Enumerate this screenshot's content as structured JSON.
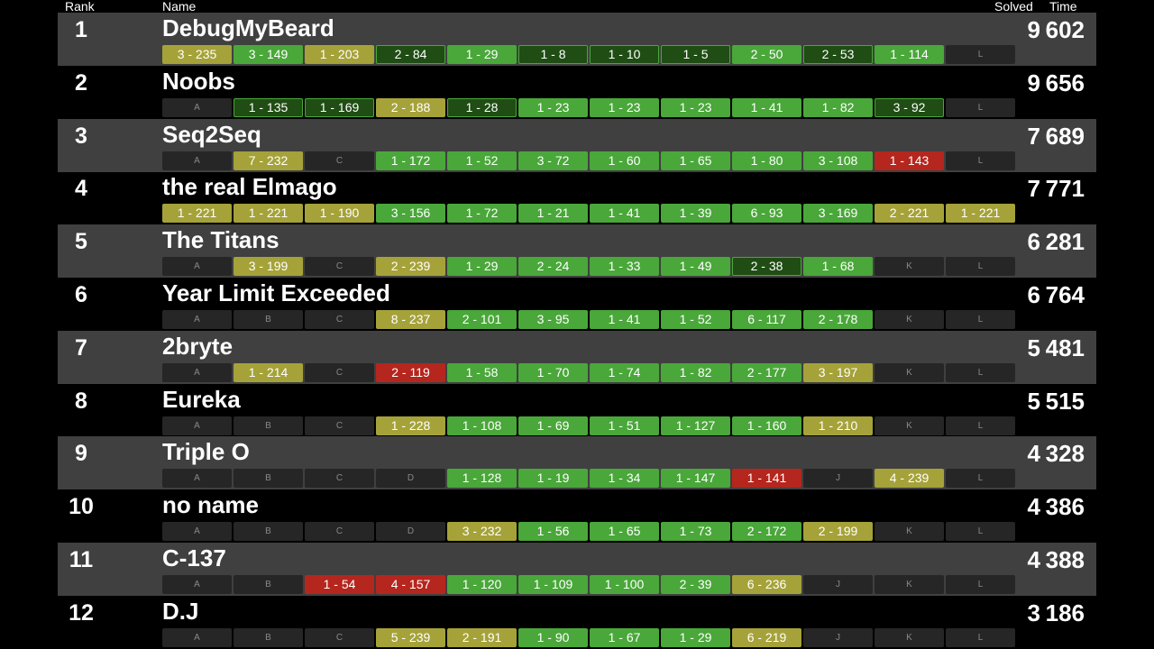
{
  "header": {
    "rank": "Rank",
    "name": "Name",
    "solved": "Solved",
    "time": "Time"
  },
  "colors": {
    "yellow": "#a5a239",
    "green": "#4aa73a",
    "first": "#1f4d14",
    "red": "#b5261e",
    "empty": "#262626",
    "row_alt": "#404040"
  },
  "teams": [
    {
      "rank": "1",
      "name": "DebugMyBeard",
      "solved": "9",
      "time": "602",
      "cells": [
        [
          "yellow",
          "3 - 235"
        ],
        [
          "green",
          "3 - 149"
        ],
        [
          "yellow",
          "1 - 203"
        ],
        [
          "first",
          "2 - 84"
        ],
        [
          "green",
          "1 - 29"
        ],
        [
          "first",
          "1 - 8"
        ],
        [
          "first",
          "1 - 10"
        ],
        [
          "first",
          "1 - 5"
        ],
        [
          "green",
          "2 - 50"
        ],
        [
          "first",
          "2 - 53"
        ],
        [
          "green",
          "1 - 114"
        ],
        [
          "empty",
          "L"
        ]
      ]
    },
    {
      "rank": "2",
      "name": "Noobs",
      "solved": "9",
      "time": "656",
      "cells": [
        [
          "empty",
          "A"
        ],
        [
          "first",
          "1 - 135"
        ],
        [
          "first",
          "1 - 169"
        ],
        [
          "yellow",
          "2 - 188"
        ],
        [
          "first",
          "1 - 28"
        ],
        [
          "green",
          "1 - 23"
        ],
        [
          "green",
          "1 - 23"
        ],
        [
          "green",
          "1 - 23"
        ],
        [
          "green",
          "1 - 41"
        ],
        [
          "green",
          "1 - 82"
        ],
        [
          "first",
          "3 - 92"
        ],
        [
          "empty",
          "L"
        ]
      ]
    },
    {
      "rank": "3",
      "name": "Seq2Seq",
      "solved": "7",
      "time": "689",
      "cells": [
        [
          "empty",
          "A"
        ],
        [
          "yellow",
          "7 - 232"
        ],
        [
          "empty",
          "C"
        ],
        [
          "green",
          "1 - 172"
        ],
        [
          "green",
          "1 - 52"
        ],
        [
          "green",
          "3 - 72"
        ],
        [
          "green",
          "1 - 60"
        ],
        [
          "green",
          "1 - 65"
        ],
        [
          "green",
          "1 - 80"
        ],
        [
          "green",
          "3 - 108"
        ],
        [
          "red",
          "1 - 143"
        ],
        [
          "empty",
          "L"
        ]
      ]
    },
    {
      "rank": "4",
      "name": "the real Elmago",
      "solved": "7",
      "time": "771",
      "cells": [
        [
          "yellow",
          "1 - 221"
        ],
        [
          "yellow",
          "1 - 221"
        ],
        [
          "yellow",
          "1 - 190"
        ],
        [
          "green",
          "3 - 156"
        ],
        [
          "green",
          "1 - 72"
        ],
        [
          "green",
          "1 - 21"
        ],
        [
          "green",
          "1 - 41"
        ],
        [
          "green",
          "1 - 39"
        ],
        [
          "green",
          "6 - 93"
        ],
        [
          "green",
          "3 - 169"
        ],
        [
          "yellow",
          "2 - 221"
        ],
        [
          "yellow",
          "1 - 221"
        ]
      ]
    },
    {
      "rank": "5",
      "name": "The Titans",
      "solved": "6",
      "time": "281",
      "cells": [
        [
          "empty",
          "A"
        ],
        [
          "yellow",
          "3 - 199"
        ],
        [
          "empty",
          "C"
        ],
        [
          "yellow",
          "2 - 239"
        ],
        [
          "green",
          "1 - 29"
        ],
        [
          "green",
          "2 - 24"
        ],
        [
          "green",
          "1 - 33"
        ],
        [
          "green",
          "1 - 49"
        ],
        [
          "first",
          "2 - 38"
        ],
        [
          "green",
          "1 - 68"
        ],
        [
          "empty",
          "K"
        ],
        [
          "empty",
          "L"
        ]
      ]
    },
    {
      "rank": "6",
      "name": "Year Limit Exceeded",
      "solved": "6",
      "time": "764",
      "cells": [
        [
          "empty",
          "A"
        ],
        [
          "empty",
          "B"
        ],
        [
          "empty",
          "C"
        ],
        [
          "yellow",
          "8 - 237"
        ],
        [
          "green",
          "2 - 101"
        ],
        [
          "green",
          "3 - 95"
        ],
        [
          "green",
          "1 - 41"
        ],
        [
          "green",
          "1 - 52"
        ],
        [
          "green",
          "6 - 117"
        ],
        [
          "green",
          "2 - 178"
        ],
        [
          "empty",
          "K"
        ],
        [
          "empty",
          "L"
        ]
      ]
    },
    {
      "rank": "7",
      "name": "2bryte",
      "solved": "5",
      "time": "481",
      "cells": [
        [
          "empty",
          "A"
        ],
        [
          "yellow",
          "1 - 214"
        ],
        [
          "empty",
          "C"
        ],
        [
          "red",
          "2 - 119"
        ],
        [
          "green",
          "1 - 58"
        ],
        [
          "green",
          "1 - 70"
        ],
        [
          "green",
          "1 - 74"
        ],
        [
          "green",
          "1 - 82"
        ],
        [
          "green",
          "2 - 177"
        ],
        [
          "yellow",
          "3 - 197"
        ],
        [
          "empty",
          "K"
        ],
        [
          "empty",
          "L"
        ]
      ]
    },
    {
      "rank": "8",
      "name": "Eureka",
      "solved": "5",
      "time": "515",
      "cells": [
        [
          "empty",
          "A"
        ],
        [
          "empty",
          "B"
        ],
        [
          "empty",
          "C"
        ],
        [
          "yellow",
          "1 - 228"
        ],
        [
          "green",
          "1 - 108"
        ],
        [
          "green",
          "1 - 69"
        ],
        [
          "green",
          "1 - 51"
        ],
        [
          "green",
          "1 - 127"
        ],
        [
          "green",
          "1 - 160"
        ],
        [
          "yellow",
          "1 - 210"
        ],
        [
          "empty",
          "K"
        ],
        [
          "empty",
          "L"
        ]
      ]
    },
    {
      "rank": "9",
      "name": "Triple O",
      "solved": "4",
      "time": "328",
      "cells": [
        [
          "empty",
          "A"
        ],
        [
          "empty",
          "B"
        ],
        [
          "empty",
          "C"
        ],
        [
          "empty",
          "D"
        ],
        [
          "green",
          "1 - 128"
        ],
        [
          "green",
          "1 - 19"
        ],
        [
          "green",
          "1 - 34"
        ],
        [
          "green",
          "1 - 147"
        ],
        [
          "red",
          "1 - 141"
        ],
        [
          "empty",
          "J"
        ],
        [
          "yellow",
          "4 - 239"
        ],
        [
          "empty",
          "L"
        ]
      ]
    },
    {
      "rank": "10",
      "name": "no name",
      "solved": "4",
      "time": "386",
      "cells": [
        [
          "empty",
          "A"
        ],
        [
          "empty",
          "B"
        ],
        [
          "empty",
          "C"
        ],
        [
          "empty",
          "D"
        ],
        [
          "yellow",
          "3 - 232"
        ],
        [
          "green",
          "1 - 56"
        ],
        [
          "green",
          "1 - 65"
        ],
        [
          "green",
          "1 - 73"
        ],
        [
          "green",
          "2 - 172"
        ],
        [
          "yellow",
          "2 - 199"
        ],
        [
          "empty",
          "K"
        ],
        [
          "empty",
          "L"
        ]
      ]
    },
    {
      "rank": "11",
      "name": "C-137",
      "solved": "4",
      "time": "388",
      "cells": [
        [
          "empty",
          "A"
        ],
        [
          "empty",
          "B"
        ],
        [
          "red",
          "1 - 54"
        ],
        [
          "red",
          "4 - 157"
        ],
        [
          "green",
          "1 - 120"
        ],
        [
          "green",
          "1 - 109"
        ],
        [
          "green",
          "1 - 100"
        ],
        [
          "green",
          "2 - 39"
        ],
        [
          "yellow",
          "6 - 236"
        ],
        [
          "empty",
          "J"
        ],
        [
          "empty",
          "K"
        ],
        [
          "empty",
          "L"
        ]
      ]
    },
    {
      "rank": "12",
      "name": "D.J",
      "solved": "3",
      "time": "186",
      "cells": [
        [
          "empty",
          "A"
        ],
        [
          "empty",
          "B"
        ],
        [
          "empty",
          "C"
        ],
        [
          "yellow",
          "5 - 239"
        ],
        [
          "yellow",
          "2 - 191"
        ],
        [
          "green",
          "1 - 90"
        ],
        [
          "green",
          "1 - 67"
        ],
        [
          "green",
          "1 - 29"
        ],
        [
          "yellow",
          "6 - 219"
        ],
        [
          "empty",
          "J"
        ],
        [
          "empty",
          "K"
        ],
        [
          "empty",
          "L"
        ]
      ]
    }
  ]
}
